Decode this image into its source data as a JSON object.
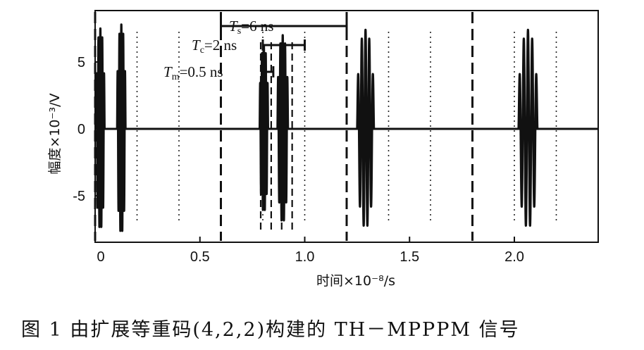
{
  "chart_data": {
    "type": "line",
    "xlabel": "时间×10⁻⁸/s",
    "ylabel": "幅度×10⁻³/V",
    "xlim": [
      0,
      2.4
    ],
    "ylim": [
      -8,
      9
    ],
    "x_ticks": [
      {
        "value": 0,
        "label": "0"
      },
      {
        "value": 0.5,
        "label": "0.5"
      },
      {
        "value": 1.0,
        "label": "1.0"
      },
      {
        "value": 1.5,
        "label": "1.5"
      },
      {
        "value": 2.0,
        "label": "2.0"
      }
    ],
    "y_ticks": [
      {
        "value": 5,
        "label": "5"
      },
      {
        "value": 0,
        "label": "0"
      },
      {
        "value": -5,
        "label": "-5"
      }
    ],
    "frame_boundaries_dashed": [
      0,
      0.6,
      1.2,
      1.8
    ],
    "slot_boundaries_dotted": [
      0.2,
      0.4,
      0.8,
      1.0,
      1.4,
      1.6,
      2.0,
      2.2
    ],
    "chip_markers_dashed": [
      0.79,
      0.84,
      0.89,
      0.94
    ],
    "pulse_bursts": [
      {
        "start": 0.005,
        "end": 0.045,
        "amplitude": 7.5
      },
      {
        "start": 0.105,
        "end": 0.145,
        "amplitude": 7.8
      },
      {
        "start": 0.785,
        "end": 0.825,
        "amplitude": 6.2
      },
      {
        "start": 0.87,
        "end": 0.92,
        "amplitude": 7.0
      },
      {
        "start": 1.25,
        "end": 1.33,
        "amplitude": 7.4
      },
      {
        "start": 2.02,
        "end": 2.11,
        "amplitude": 7.4
      }
    ],
    "annotations": [
      {
        "symbol": "T",
        "sub": "s",
        "text": "=6 ns",
        "span": [
          0.6,
          1.2
        ]
      },
      {
        "symbol": "T",
        "sub": "c",
        "text": "=2 ns",
        "span": [
          0.8,
          1.0
        ]
      },
      {
        "symbol": "T",
        "sub": "m",
        "text": "=0.5 ns",
        "span": [
          0.8,
          0.85
        ]
      }
    ]
  },
  "caption": "图 1   由扩展等重码(4,2,2)构建的 TH－MPPPM 信号"
}
